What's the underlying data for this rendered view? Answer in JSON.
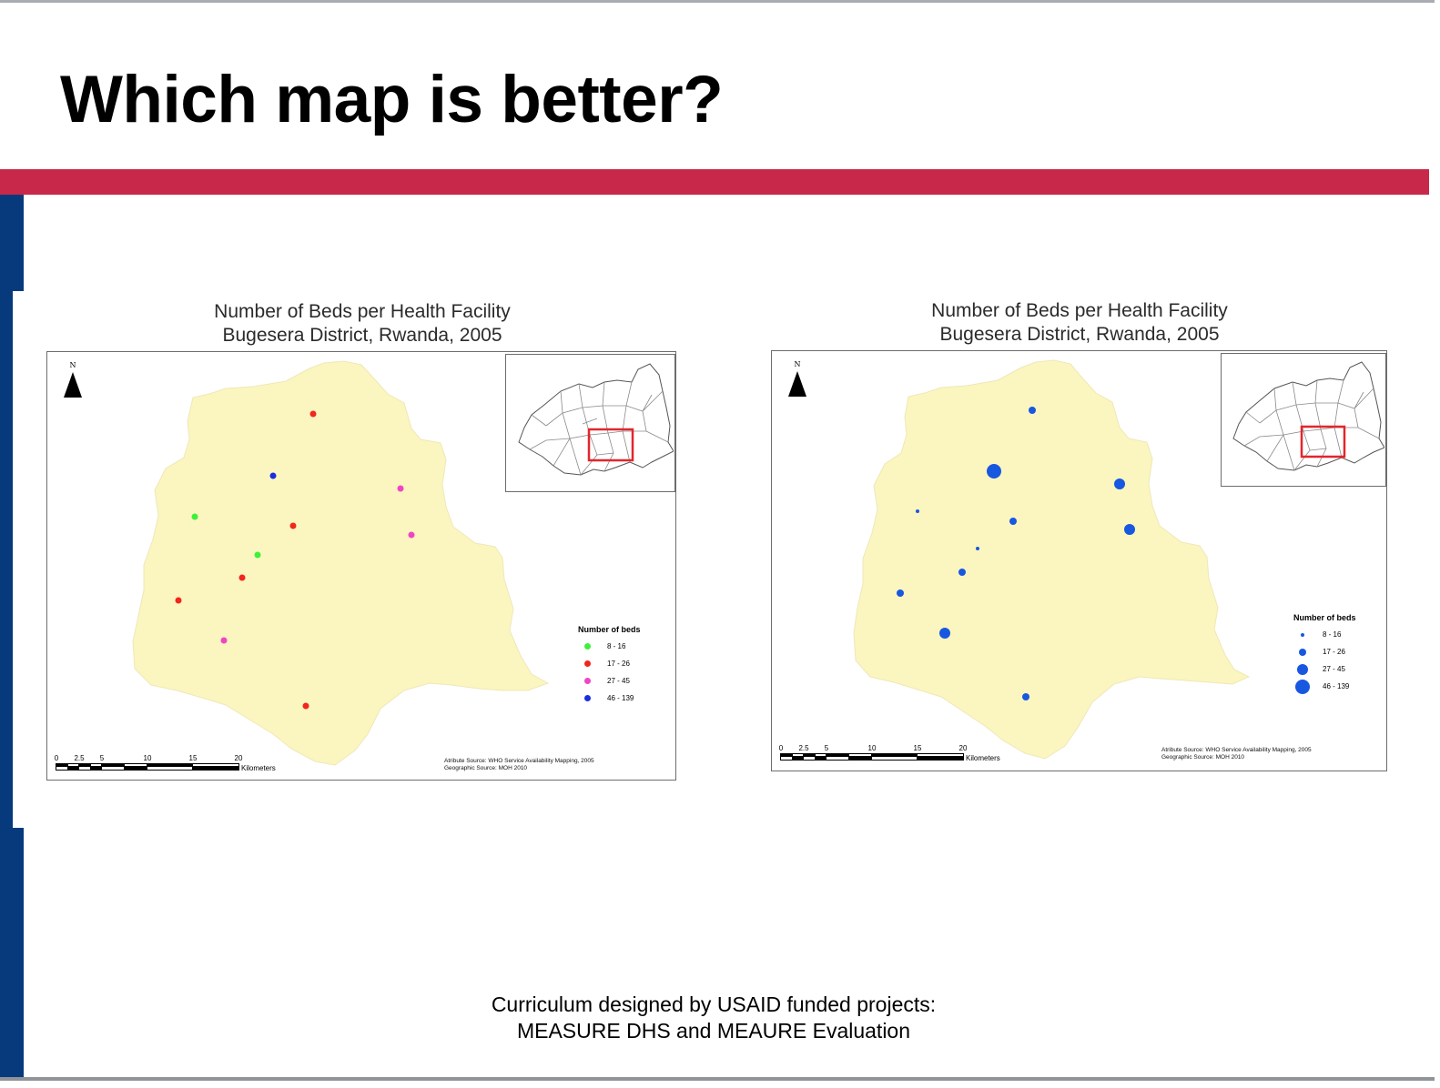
{
  "slide": {
    "title": "Which map is better?",
    "footer_line1": "Curriculum designed by USAID funded projects:",
    "footer_line2": "MEASURE DHS and MEAURE Evaluation"
  },
  "colors": {
    "title_band": "#c8284a",
    "side_bar": "#063a7c",
    "district_fill": "#fbf5bf",
    "inset_highlight": "#e3262c"
  },
  "maps": [
    {
      "title_line1": "Number of Beds per Health Facility",
      "title_line2": "Bugesera District, Rwanda, 2005",
      "north_label": "N",
      "legend_title": "Number of beds",
      "symbology": "graduated-color",
      "classes": [
        {
          "label": "8 - 16",
          "color": "#3ef03a",
          "size": 7
        },
        {
          "label": "17 - 26",
          "color": "#f2261c",
          "size": 7
        },
        {
          "label": "27 - 45",
          "color": "#f044c6",
          "size": 7
        },
        {
          "label": "46 - 139",
          "color": "#1a2ee0",
          "size": 7
        }
      ],
      "facilities": [
        {
          "class": 1
        },
        {
          "class": 3
        },
        {
          "class": 2
        },
        {
          "class": 0
        },
        {
          "class": 1
        },
        {
          "class": 2
        },
        {
          "class": 0
        },
        {
          "class": 1
        },
        {
          "class": 1
        },
        {
          "class": 2
        },
        {
          "class": 1
        }
      ],
      "scale_ticks": [
        "0",
        "2.5",
        "5",
        "10",
        "15",
        "20"
      ],
      "scale_units": "Kilometers",
      "source_line1": "Atribute Source: WHO Service Availability Mapping, 2005",
      "source_line2": "Geographic Source: MOH 2010"
    },
    {
      "title_line1": "Number of Beds per Health Facility",
      "title_line2": "Bugesera District, Rwanda, 2005",
      "north_label": "N",
      "legend_title": "Number of beds",
      "symbology": "graduated-size",
      "classes": [
        {
          "label": "8 - 16",
          "color": "#1858e0",
          "size": 4
        },
        {
          "label": "17 - 26",
          "color": "#1858e0",
          "size": 8
        },
        {
          "label": "27 - 45",
          "color": "#1858e0",
          "size": 12
        },
        {
          "label": "46 - 139",
          "color": "#1858e0",
          "size": 16
        }
      ],
      "facilities": [
        {
          "class": 1
        },
        {
          "class": 3
        },
        {
          "class": 2
        },
        {
          "class": 0
        },
        {
          "class": 1
        },
        {
          "class": 2
        },
        {
          "class": 0
        },
        {
          "class": 1
        },
        {
          "class": 1
        },
        {
          "class": 2
        },
        {
          "class": 1
        }
      ],
      "scale_ticks": [
        "0",
        "2.5",
        "5",
        "10",
        "15",
        "20"
      ],
      "scale_units": "Kilometers",
      "source_line1": "Atribute Source: WHO Service Availability Mapping, 2005",
      "source_line2": "Geographic Source: MOH 2010"
    }
  ]
}
